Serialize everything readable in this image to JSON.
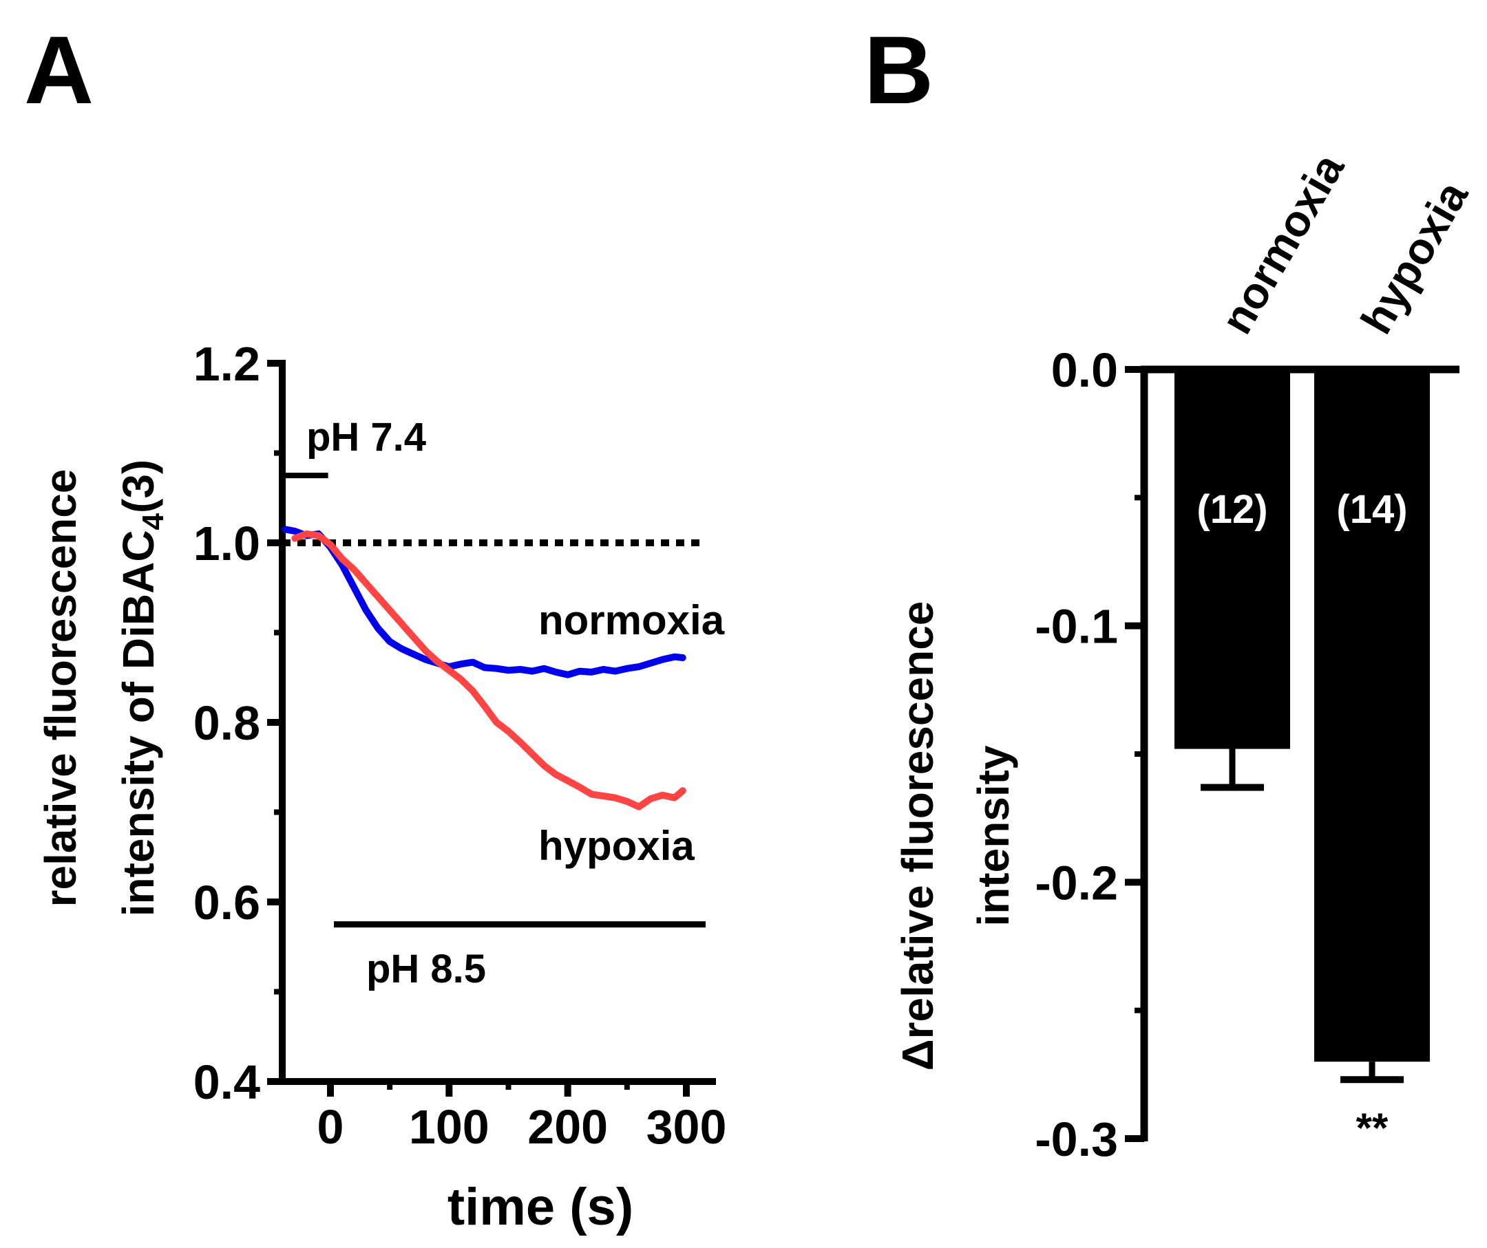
{
  "panels": {
    "a_label": "A",
    "b_label": "B"
  },
  "chart_data": [
    {
      "panel": "A",
      "type": "line",
      "xlabel": "time (s)",
      "ylabel_line1": "relative fluorescence",
      "ylabel_line2_prefix": "intensity of DiBAC",
      "ylabel_subscript": "4",
      "ylabel_line2_suffix": "(3)",
      "xlim": [
        -40,
        320
      ],
      "ylim": [
        0.4,
        1.2
      ],
      "xticks": [
        0,
        100,
        200,
        300
      ],
      "xtick_labels": [
        "0",
        "100",
        "200",
        "300"
      ],
      "yticks": [
        0.4,
        0.6,
        0.8,
        1.0,
        1.2
      ],
      "ytick_labels": [
        "0.4",
        "0.6",
        "0.8",
        "1.0",
        "1.2"
      ],
      "baseline": 1.0,
      "annotations": {
        "ph_initial": "pH 7.4",
        "ph_initial_range": [
          -40,
          5
        ],
        "ph_initial_level": 1.075,
        "ph_switch": "pH 8.5",
        "ph_switch_range": [
          5,
          310
        ],
        "ph_switch_level": 0.575
      },
      "series": [
        {
          "name": "normoxia",
          "color": "#0000ee",
          "x": [
            -38,
            -30,
            -20,
            -10,
            0,
            10,
            20,
            30,
            40,
            50,
            60,
            70,
            80,
            90,
            100,
            110,
            120,
            130,
            140,
            150,
            160,
            170,
            180,
            190,
            200,
            210,
            220,
            230,
            240,
            250,
            260,
            270,
            280,
            290,
            297
          ],
          "y": [
            1.015,
            1.013,
            1.008,
            1.01,
            0.995,
            0.975,
            0.95,
            0.925,
            0.905,
            0.89,
            0.882,
            0.876,
            0.87,
            0.866,
            0.862,
            0.865,
            0.867,
            0.861,
            0.86,
            0.858,
            0.859,
            0.857,
            0.86,
            0.856,
            0.853,
            0.857,
            0.856,
            0.859,
            0.857,
            0.86,
            0.862,
            0.866,
            0.87,
            0.873,
            0.872
          ]
        },
        {
          "name": "hypoxia",
          "color": "#ff4444",
          "x": [
            -30,
            -20,
            -10,
            0,
            10,
            20,
            30,
            40,
            50,
            60,
            70,
            80,
            90,
            100,
            110,
            120,
            130,
            140,
            150,
            160,
            170,
            180,
            190,
            200,
            210,
            220,
            230,
            240,
            250,
            260,
            270,
            280,
            290,
            297
          ],
          "y": [
            1.005,
            1.01,
            1.008,
            0.998,
            0.982,
            0.97,
            0.955,
            0.94,
            0.925,
            0.91,
            0.895,
            0.88,
            0.868,
            0.858,
            0.848,
            0.835,
            0.818,
            0.8,
            0.79,
            0.778,
            0.765,
            0.752,
            0.742,
            0.735,
            0.728,
            0.72,
            0.718,
            0.716,
            0.712,
            0.706,
            0.715,
            0.719,
            0.716,
            0.724
          ]
        }
      ]
    },
    {
      "panel": "B",
      "type": "bar",
      "ylabel_line1": "Δrelative fluorescence",
      "ylabel_line2": "intensity",
      "ylim": [
        -0.3,
        0.0
      ],
      "yticks": [
        0.0,
        -0.1,
        -0.2,
        -0.3
      ],
      "ytick_labels": [
        "0.0",
        "-0.1",
        "-0.2",
        "-0.3"
      ],
      "categories": [
        "normoxia",
        "hypoxia"
      ],
      "values": [
        -0.148,
        -0.27
      ],
      "errors": [
        0.015,
        0.007
      ],
      "n_labels": [
        "(12)",
        "(14)"
      ],
      "significance": [
        "",
        "**"
      ],
      "bar_color": "#000000"
    }
  ]
}
